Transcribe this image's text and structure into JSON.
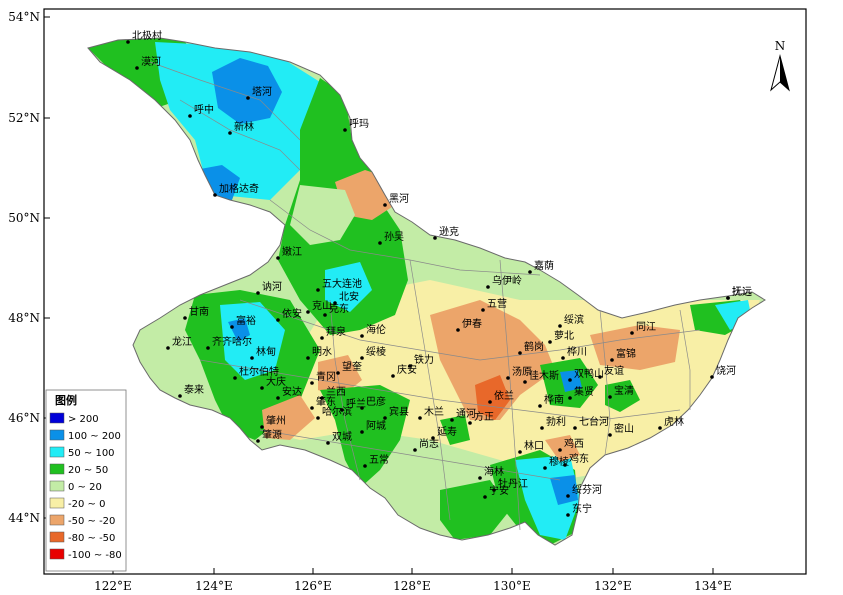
{
  "colors": {
    "c_gt200": "#0000d8",
    "c_100_200": "#0a90e8",
    "c_50_100": "#22ecf5",
    "c_20_50": "#20c020",
    "c_0_20": "#c3eca6",
    "c_m20_0": "#f8efa6",
    "c_m50_m20": "#eca56a",
    "c_m80_m50": "#e8682a",
    "c_m100_m80": "#e80000"
  },
  "axes": {
    "lat_labels": [
      "54°N",
      "52°N",
      "50°N",
      "48°N",
      "46°N",
      "44°N"
    ],
    "lon_labels": [
      "122°E",
      "124°E",
      "126°E",
      "128°E",
      "130°E",
      "132°E",
      "134°E"
    ]
  },
  "north_arrow": {
    "label": "N"
  },
  "legend": {
    "title": "图例",
    "items": [
      {
        "label": "> 200",
        "color_key": "c_gt200"
      },
      {
        "label": "100 ~ 200",
        "color_key": "c_100_200"
      },
      {
        "label": "50 ~ 100",
        "color_key": "c_50_100"
      },
      {
        "label": "20 ~ 50",
        "color_key": "c_20_50"
      },
      {
        "label": "0 ~ 20",
        "color_key": "c_0_20"
      },
      {
        "label": "-20 ~ 0",
        "color_key": "c_m20_0"
      },
      {
        "label": "-50 ~ -20",
        "color_key": "c_m50_m20"
      },
      {
        "label": "-80 ~ -50",
        "color_key": "c_m80_m50"
      },
      {
        "label": "-100 ~ -80",
        "color_key": "c_m100_m80"
      }
    ]
  },
  "stations": [
    "北极村",
    "漠河",
    "塔河",
    "呼中",
    "新林",
    "呼玛",
    "加格达奇",
    "黑河",
    "嫩江",
    "孙吴",
    "逊克",
    "嘉荫",
    "乌伊岭",
    "五营",
    "伊春",
    "五大连池",
    "北安",
    "克山",
    "克东",
    "讷河",
    "依安",
    "甘南",
    "富裕",
    "拜泉",
    "明水",
    "齐齐哈尔",
    "林甸",
    "龙江",
    "杜尔伯特",
    "大庆",
    "安达",
    "青冈",
    "望奎",
    "绥棱",
    "海伦",
    "庆安",
    "铁力",
    "泰来",
    "肇州",
    "肇源",
    "肇东",
    "兰西",
    "呼兰",
    "巴彦",
    "哈尔滨",
    "宾县",
    "双城",
    "阿城",
    "五常",
    "木兰",
    "通河",
    "方正",
    "延寿",
    "尚志",
    "依兰",
    "汤原",
    "鹤岗",
    "萝北",
    "绥滨",
    "佳木斯",
    "桦川",
    "桦南",
    "集贤",
    "富锦",
    "同江",
    "抚远",
    "饶河",
    "宝清",
    "双鸭山",
    "友谊",
    "七台河",
    "勃利",
    "密山",
    "虎林",
    "鸡东",
    "鸡西",
    "林口",
    "穆棱",
    "海林",
    "牡丹江",
    "宁安",
    "绥芬河",
    "东宁",
    "抚远"
  ]
}
